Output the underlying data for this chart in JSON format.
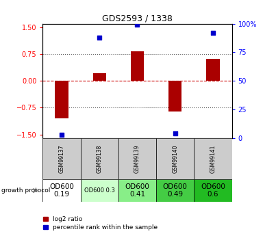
{
  "title": "GDS2593 / 1338",
  "samples": [
    "GSM99137",
    "GSM99138",
    "GSM99139",
    "GSM99140",
    "GSM99141"
  ],
  "log2_ratios": [
    -1.05,
    0.22,
    0.82,
    -0.85,
    0.62
  ],
  "percentile_ranks": [
    3,
    88,
    99,
    4,
    92
  ],
  "growth_protocol": [
    "OD600\n0.19",
    "OD600 0.3",
    "OD600\n0.41",
    "OD600\n0.49",
    "OD600\n0.6"
  ],
  "growth_protocol_colors": [
    "#ffffff",
    "#ccffcc",
    "#88ee88",
    "#44cc44",
    "#22bb22"
  ],
  "growth_protocol_text_sizes": [
    7.5,
    6,
    7.5,
    7.5,
    7.5
  ],
  "ylim": [
    -1.6,
    1.6
  ],
  "yticks_left": [
    -1.5,
    -0.75,
    0.0,
    0.75,
    1.5
  ],
  "yticks_right": [
    0,
    25,
    50,
    75,
    100
  ],
  "bar_color": "#aa0000",
  "scatter_color": "#0000cc",
  "dotted_line_color": "#555555",
  "zero_line_color": "#cc0000",
  "bar_width": 0.35,
  "legend_red_label": "log2 ratio",
  "legend_blue_label": "percentile rank within the sample",
  "growth_protocol_label": "growth protocol",
  "sample_bg_color": "#cccccc"
}
